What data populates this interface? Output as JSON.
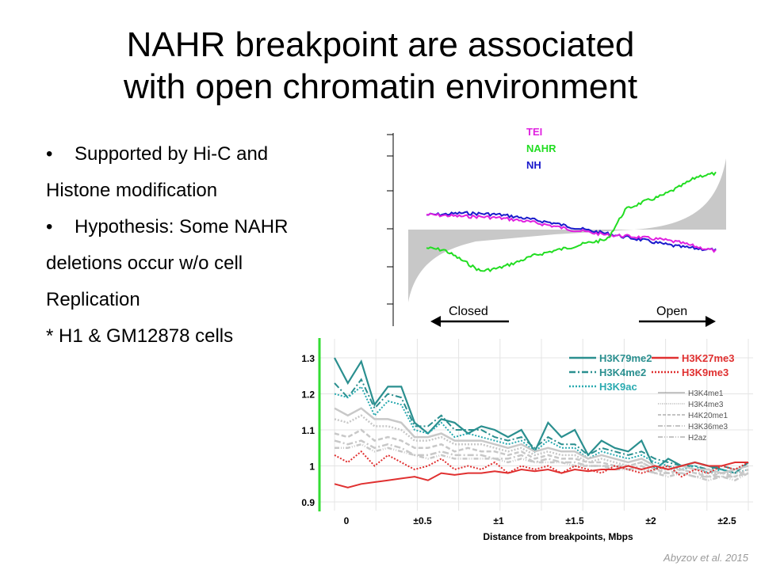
{
  "slide": {
    "title_line1": "NAHR breakpoint are associated",
    "title_line2": "with open chromatin environment",
    "bullets": [
      {
        "bullet": "•",
        "text": "Supported by Hi-C and"
      },
      {
        "bullet": "",
        "text": "Histone modification"
      },
      {
        "bullet": "•",
        "text": "Hypothesis: Some NAHR"
      },
      {
        "bullet": "",
        "text": "deletions occur w/o cell"
      },
      {
        "bullet": "",
        "text": "Replication"
      },
      {
        "bullet": "",
        "text": "* H1 & GM12878 cells"
      }
    ],
    "citation": "Abyzov et al. 2015"
  },
  "chart_data": [
    {
      "type": "line",
      "title": "",
      "legend": [
        {
          "name": "TEI",
          "color": "#e020e0"
        },
        {
          "name": "NAHR",
          "color": "#22dd22"
        },
        {
          "name": "NH",
          "color": "#1a1acc"
        }
      ],
      "annotations": {
        "left": "Closed",
        "right": "Open"
      },
      "series": [
        {
          "name": "NH",
          "color": "#1a1acc",
          "values": [
            0.62,
            0.64,
            0.68,
            0.66,
            0.63,
            0.55,
            0.45,
            0.35,
            0.22,
            0.1,
            0.0,
            -0.12,
            -0.22,
            -0.34,
            -0.44,
            -0.5,
            -0.55
          ]
        },
        {
          "name": "TEI",
          "color": "#e020e0",
          "values": [
            0.63,
            0.6,
            0.57,
            0.56,
            0.52,
            0.45,
            0.36,
            0.25,
            0.13,
            0.04,
            -0.05,
            -0.08,
            -0.14,
            -0.2,
            -0.3,
            -0.45,
            -0.58
          ]
        },
        {
          "name": "NAHR",
          "color": "#22dd22",
          "values": [
            -0.48,
            -0.55,
            -0.9,
            -1.25,
            -1.15,
            -0.95,
            -0.72,
            -0.58,
            -0.45,
            -0.3,
            -0.2,
            0.8,
            1.05,
            1.25,
            1.55,
            1.9,
            2.0
          ]
        }
      ]
    },
    {
      "type": "line",
      "xlabel": "Distance from breakpoints, Mbps",
      "ylabel": "",
      "x_ticks": [
        "0",
        "±0.5",
        "±1",
        "±1.5",
        "±2",
        "±2.5"
      ],
      "y_ticks": [
        0.9,
        1,
        1.1,
        1.2,
        1.3
      ],
      "ylim": [
        0.88,
        1.34
      ],
      "legend_highlight": [
        {
          "name": "H3K79me2",
          "color": "#2a8f8f",
          "style": "solid"
        },
        {
          "name": "H3K4me2",
          "color": "#2a8f8f",
          "style": "dashdot"
        },
        {
          "name": "H3K9ac",
          "color": "#2aaab0",
          "style": "dotted"
        },
        {
          "name": "H3K27me3",
          "color": "#e03030",
          "style": "solid"
        },
        {
          "name": "H3K9me3",
          "color": "#e03030",
          "style": "dotted"
        }
      ],
      "legend_other": [
        {
          "name": "H3K4me1",
          "style": "solid"
        },
        {
          "name": "H3K4me3",
          "style": "dotted"
        },
        {
          "name": "H4K20me1",
          "style": "dashed"
        },
        {
          "name": "H3K36me3",
          "style": "dashdot"
        },
        {
          "name": "H2az",
          "style": "dashdot2"
        }
      ],
      "series": [
        {
          "name": "H3K79me2",
          "color": "#2a8f8f",
          "style": "solid",
          "width": 2.2,
          "values": [
            1.3,
            1.23,
            1.29,
            1.17,
            1.22,
            1.22,
            1.12,
            1.09,
            1.13,
            1.12,
            1.09,
            1.11,
            1.1,
            1.08,
            1.1,
            1.04,
            1.12,
            1.08,
            1.1,
            1.03,
            1.07,
            1.05,
            1.04,
            1.07,
            0.99,
            1.02,
            1.0,
            1.01,
            1.0,
            0.99,
            0.98,
            1.01
          ]
        },
        {
          "name": "H3K4me2",
          "color": "#2a8f8f",
          "style": "dashdot",
          "width": 2,
          "values": [
            1.23,
            1.19,
            1.24,
            1.16,
            1.2,
            1.19,
            1.11,
            1.11,
            1.14,
            1.1,
            1.1,
            1.1,
            1.08,
            1.07,
            1.08,
            1.05,
            1.08,
            1.06,
            1.06,
            1.03,
            1.05,
            1.04,
            1.03,
            1.04,
            1.02,
            1.01,
            1.0,
            1.0,
            0.99,
            1.0,
            0.99,
            1.0
          ]
        },
        {
          "name": "H3K9ac",
          "color": "#2aaab0",
          "style": "dotted",
          "width": 2,
          "values": [
            1.2,
            1.19,
            1.22,
            1.14,
            1.18,
            1.17,
            1.1,
            1.09,
            1.12,
            1.08,
            1.09,
            1.08,
            1.07,
            1.06,
            1.07,
            1.04,
            1.07,
            1.05,
            1.05,
            1.02,
            1.04,
            1.03,
            1.02,
            1.03,
            1.01,
            1.0,
            0.99,
            1.0,
            0.98,
            0.99,
            0.98,
            0.99
          ]
        },
        {
          "name": "H3K4me1",
          "color": "#c8c8c8",
          "style": "solid",
          "width": 2.5,
          "values": [
            1.16,
            1.14,
            1.16,
            1.13,
            1.13,
            1.12,
            1.08,
            1.08,
            1.09,
            1.07,
            1.07,
            1.07,
            1.06,
            1.05,
            1.06,
            1.04,
            1.05,
            1.04,
            1.04,
            1.02,
            1.03,
            1.02,
            1.01,
            1.02,
            1.0,
            0.99,
            1.0,
            0.99,
            0.99,
            0.98,
            0.99,
            1.0
          ]
        },
        {
          "name": "H3K4me3",
          "color": "#c8c8c8",
          "style": "dotted",
          "width": 2.5,
          "values": [
            1.13,
            1.12,
            1.14,
            1.11,
            1.11,
            1.1,
            1.07,
            1.07,
            1.08,
            1.06,
            1.06,
            1.06,
            1.05,
            1.04,
            1.05,
            1.03,
            1.04,
            1.03,
            1.03,
            1.01,
            1.02,
            1.01,
            1.0,
            1.01,
            0.99,
            0.99,
            0.99,
            0.98,
            0.98,
            0.98,
            0.98,
            0.99
          ]
        },
        {
          "name": "H4K20me1",
          "color": "#c8c8c8",
          "style": "dashed",
          "width": 2.5,
          "values": [
            1.09,
            1.08,
            1.1,
            1.07,
            1.08,
            1.07,
            1.05,
            1.05,
            1.06,
            1.04,
            1.05,
            1.04,
            1.04,
            1.03,
            1.04,
            1.02,
            1.03,
            1.02,
            1.02,
            1.01,
            1.01,
            1.0,
            1.0,
            1.01,
            0.99,
            0.98,
            0.99,
            0.98,
            0.97,
            0.98,
            0.97,
            0.99
          ]
        },
        {
          "name": "H3K36me3",
          "color": "#c8c8c8",
          "style": "dashdot",
          "width": 2.5,
          "values": [
            1.07,
            1.06,
            1.07,
            1.05,
            1.06,
            1.05,
            1.03,
            1.03,
            1.04,
            1.03,
            1.03,
            1.03,
            1.02,
            1.02,
            1.03,
            1.01,
            1.02,
            1.01,
            1.01,
            1.0,
            1.0,
            1.0,
            0.99,
            1.0,
            0.98,
            0.98,
            0.98,
            0.97,
            0.97,
            0.97,
            0.97,
            0.98
          ]
        },
        {
          "name": "H2az",
          "color": "#c8c8c8",
          "style": "dashdot2",
          "width": 2.5,
          "values": [
            1.05,
            1.05,
            1.06,
            1.04,
            1.05,
            1.04,
            1.03,
            1.02,
            1.03,
            1.02,
            1.02,
            1.02,
            1.02,
            1.01,
            1.02,
            1.01,
            1.01,
            1.01,
            1.0,
            1.0,
            1.0,
            0.99,
            0.99,
            0.99,
            0.98,
            0.97,
            0.98,
            0.97,
            0.96,
            0.97,
            0.96,
            0.98
          ]
        },
        {
          "name": "H3K9me3",
          "color": "#e03030",
          "style": "dotted",
          "width": 2,
          "values": [
            1.03,
            1.01,
            1.04,
            1.0,
            1.03,
            1.01,
            0.99,
            1.0,
            1.02,
            0.99,
            1.0,
            0.99,
            1.01,
            0.98,
            1.0,
            0.99,
            1.0,
            0.98,
            1.0,
            0.99,
            0.98,
            1.0,
            0.99,
            0.98,
            0.99,
            1.0,
            0.97,
            0.99,
            0.98,
            1.0,
            0.99,
            1.01
          ]
        },
        {
          "name": "H3K27me3",
          "color": "#e03030",
          "style": "solid",
          "width": 2,
          "values": [
            0.95,
            0.94,
            0.95,
            0.955,
            0.96,
            0.965,
            0.97,
            0.96,
            0.98,
            0.975,
            0.98,
            0.98,
            0.985,
            0.98,
            0.99,
            0.985,
            0.99,
            0.98,
            0.99,
            0.985,
            0.99,
            0.99,
            1.0,
            0.99,
            1.0,
            0.99,
            1.0,
            1.01,
            1.0,
            1.0,
            1.01,
            1.01
          ]
        }
      ]
    }
  ]
}
